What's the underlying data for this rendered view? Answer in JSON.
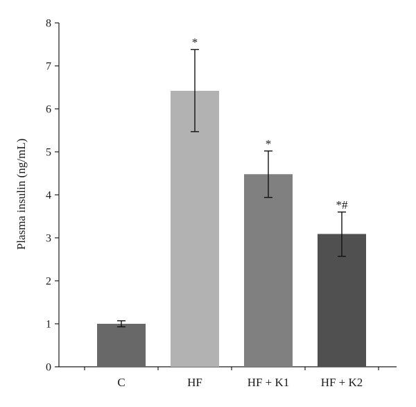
{
  "chart_data": {
    "type": "bar",
    "title": "",
    "xlabel": "",
    "ylabel": "Plasma insulin (ng/mL)",
    "ylim": [
      0,
      8
    ],
    "yticks": [
      0,
      1,
      2,
      3,
      4,
      5,
      6,
      7,
      8
    ],
    "grid": false,
    "categories": [
      "C",
      "HF",
      "HF + K1",
      "HF + K2"
    ],
    "values": [
      1.0,
      6.42,
      4.48,
      3.09
    ],
    "error_low": [
      0.93,
      5.47,
      3.94,
      2.57
    ],
    "error_high": [
      1.07,
      7.38,
      5.02,
      3.6
    ],
    "annotations": [
      "",
      "*",
      "*",
      "*#"
    ],
    "colors": [
      "#686868",
      "#b2b2b2",
      "#808080",
      "#505050"
    ]
  }
}
